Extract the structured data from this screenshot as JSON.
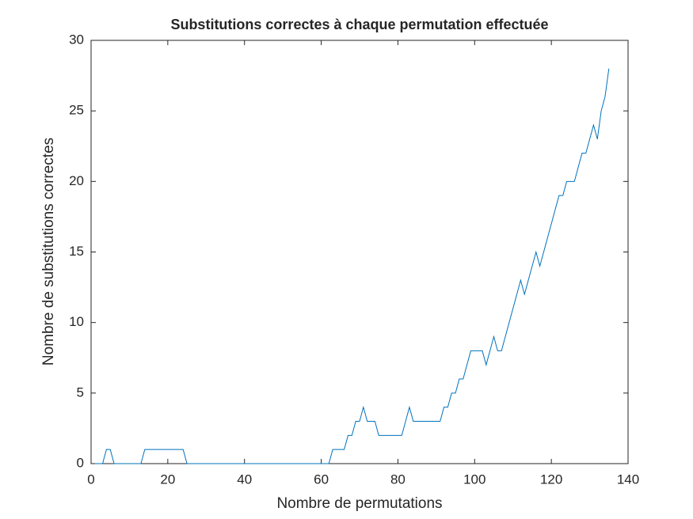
{
  "chart_data": {
    "type": "line",
    "title": "Substitutions correctes à chaque permutation effectuée",
    "x_label": "Nombre de permutations",
    "y_label": "Nombre de substitutions correctes",
    "xlim": [
      0,
      140
    ],
    "xticks": [
      0,
      20,
      40,
      60,
      80,
      100,
      120,
      140
    ],
    "ylim": [
      0,
      30
    ],
    "yticks": [
      0,
      5,
      10,
      15,
      20,
      25,
      30
    ],
    "grid": false,
    "x": [
      1,
      2,
      3,
      4,
      5,
      6,
      7,
      8,
      9,
      10,
      11,
      12,
      13,
      14,
      15,
      16,
      17,
      18,
      19,
      20,
      21,
      22,
      23,
      24,
      25,
      26,
      27,
      28,
      29,
      30,
      31,
      32,
      33,
      34,
      35,
      36,
      37,
      38,
      39,
      40,
      41,
      42,
      43,
      44,
      45,
      46,
      47,
      48,
      49,
      50,
      51,
      52,
      53,
      54,
      55,
      56,
      57,
      58,
      59,
      60,
      61,
      62,
      63,
      64,
      65,
      66,
      67,
      68,
      69,
      70,
      71,
      72,
      73,
      74,
      75,
      76,
      77,
      78,
      79,
      80,
      81,
      82,
      83,
      84,
      85,
      86,
      87,
      88,
      89,
      90,
      91,
      92,
      93,
      94,
      95,
      96,
      97,
      98,
      99,
      100,
      101,
      102,
      103,
      104,
      105,
      106,
      107,
      108,
      109,
      110,
      111,
      112,
      113,
      114,
      115,
      116,
      117,
      118,
      119,
      120,
      121,
      122,
      123,
      124,
      125,
      126,
      127,
      128,
      129,
      130,
      131,
      132,
      133,
      134,
      135
    ],
    "series": [
      {
        "color": "#0072bd",
        "values": [
          0,
          0,
          0,
          1,
          1,
          0,
          0,
          0,
          0,
          0,
          0,
          0,
          0,
          1,
          1,
          1,
          1,
          1,
          1,
          1,
          1,
          1,
          1,
          1,
          0,
          0,
          0,
          0,
          0,
          0,
          0,
          0,
          0,
          0,
          0,
          0,
          0,
          0,
          0,
          0,
          0,
          0,
          0,
          0,
          0,
          0,
          0,
          0,
          0,
          0,
          0,
          0,
          0,
          0,
          0,
          0,
          0,
          0,
          0,
          0,
          0,
          0,
          1,
          1,
          1,
          1,
          2,
          2,
          3,
          3,
          4,
          3,
          3,
          3,
          2,
          2,
          2,
          2,
          2,
          2,
          2,
          3,
          4,
          3,
          3,
          3,
          3,
          3,
          3,
          3,
          3,
          4,
          4,
          5,
          5,
          6,
          6,
          7,
          8,
          8,
          8,
          8,
          7,
          8,
          9,
          8,
          8,
          9,
          10,
          11,
          12,
          13,
          12,
          13,
          14,
          15,
          14,
          15,
          16,
          17,
          18,
          19,
          19,
          20,
          20,
          20,
          21,
          22,
          22,
          23,
          24,
          23,
          25,
          26,
          28
        ]
      }
    ]
  }
}
